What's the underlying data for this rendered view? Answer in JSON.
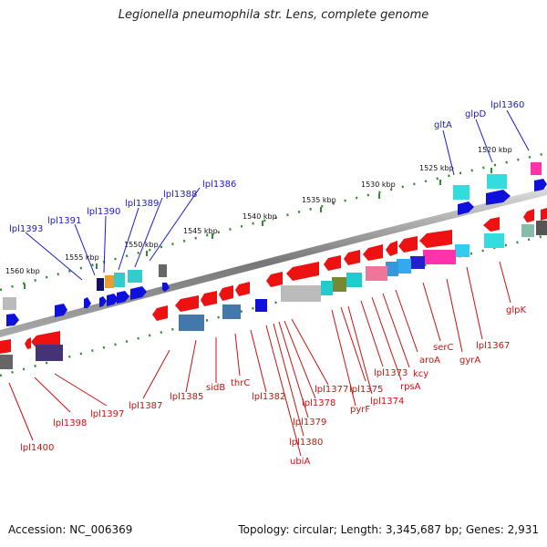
{
  "title": "Legionella pneumophila str. Lens, complete genome",
  "footer": {
    "accession": "Accession: NC_006369",
    "topology": "Topology: circular; Length: 3,345,687 bp; Genes: 2,931"
  },
  "ticks": [
    "1520 kbp",
    "1525 kbp",
    "1530 kbp",
    "1535 kbp",
    "1540 kbp",
    "1545 kbp",
    "1550 kbp",
    "1555 kbp",
    "1560 kbp"
  ],
  "top_genes": [
    "lpl1360",
    "glpD",
    "gltA",
    "lpl1386",
    "lpl1388",
    "lpl1389",
    "lpl1390",
    "lpl1391",
    "lpl1393"
  ],
  "bottom_genes": [
    "glpK",
    "lpl1367",
    "gyrA",
    "serC",
    "aroA",
    "kcy",
    "rpsA",
    "lpl1373",
    "lpl1374",
    "lpl1375",
    "pyrF",
    "lpl1377",
    "lpl1378",
    "lpl1379",
    "lpl1380",
    "ubiA",
    "lpl1382",
    "thrC",
    "sidB",
    "lpl1385",
    "lpl1387",
    "lpl1397",
    "lpl1398",
    "lpl1400"
  ],
  "colors": {
    "top_strand": "#1010dd",
    "bottom_strand": "#ee1111",
    "tick_dots": "#2e8b2e",
    "backbone": "#888888"
  }
}
